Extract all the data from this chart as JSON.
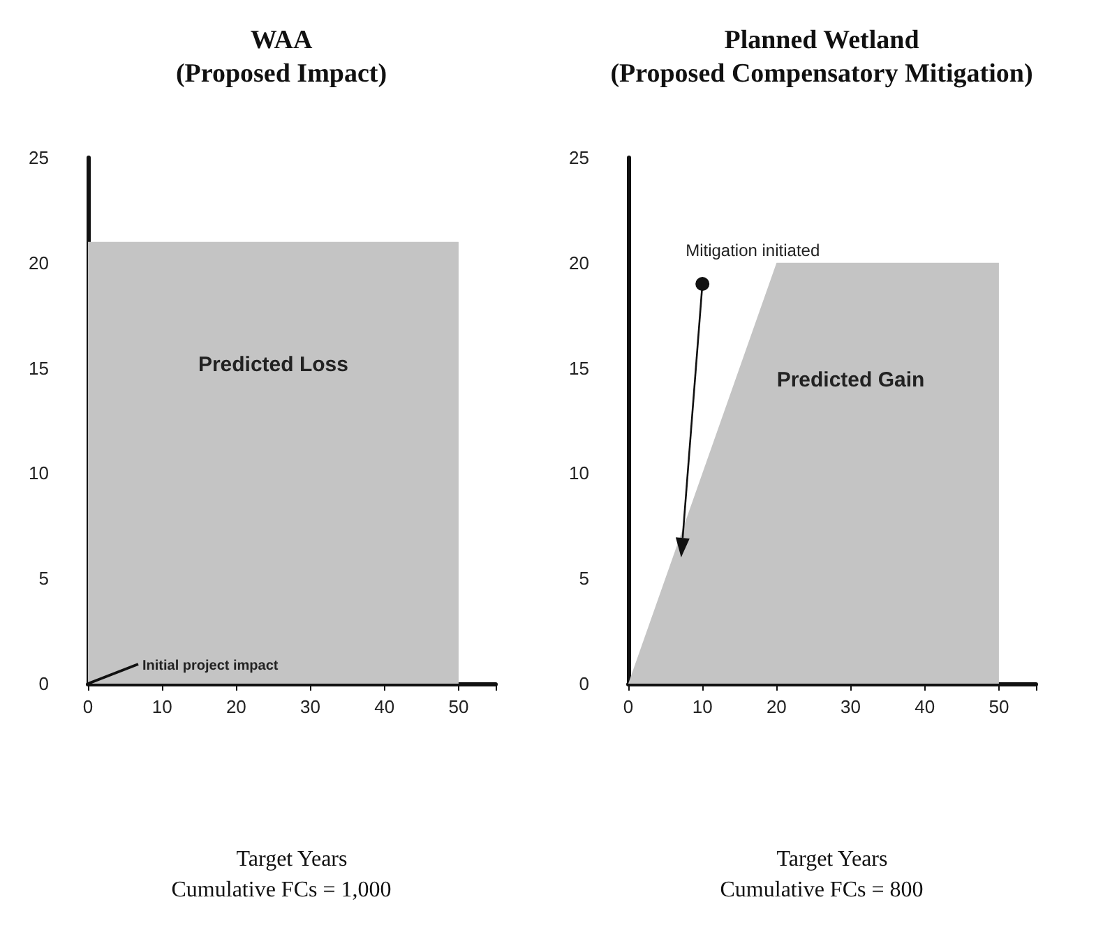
{
  "chart_data": [
    {
      "type": "area",
      "title": "WAA\n(Proposed Impact)",
      "xlabel": "Target Years",
      "x": [
        0,
        50
      ],
      "values": [
        21,
        21
      ],
      "color": "#c4c4c4",
      "xlim": [
        0,
        55
      ],
      "xticks": [
        0,
        10,
        20,
        30,
        40,
        50
      ],
      "ylim": [
        0,
        25
      ],
      "yticks": [
        0,
        5,
        10,
        15,
        20,
        25
      ],
      "grid": false,
      "annotations": [
        "Predicted Loss",
        {
          "text": "Initial project impact",
          "x": 0,
          "y": 0
        },
        "Cumulative FCs = 1,000"
      ]
    },
    {
      "type": "area",
      "title": "Planned Wetland\n(Proposed Compensatory Mitigation)",
      "xlabel": "Target Years",
      "x": [
        0,
        20,
        50
      ],
      "values": [
        0,
        20,
        20
      ],
      "color": "#c4c4c4",
      "xlim": [
        0,
        55
      ],
      "xticks": [
        0,
        10,
        20,
        30,
        40,
        50
      ],
      "ylim": [
        0,
        25
      ],
      "yticks": [
        0,
        5,
        10,
        15,
        20,
        25
      ],
      "grid": false,
      "annotations": [
        {
          "text": "Mitigation initiated",
          "x": 10,
          "y": 19
        },
        "Predicted Gain",
        "Cumulative FCs = 800"
      ]
    }
  ]
}
